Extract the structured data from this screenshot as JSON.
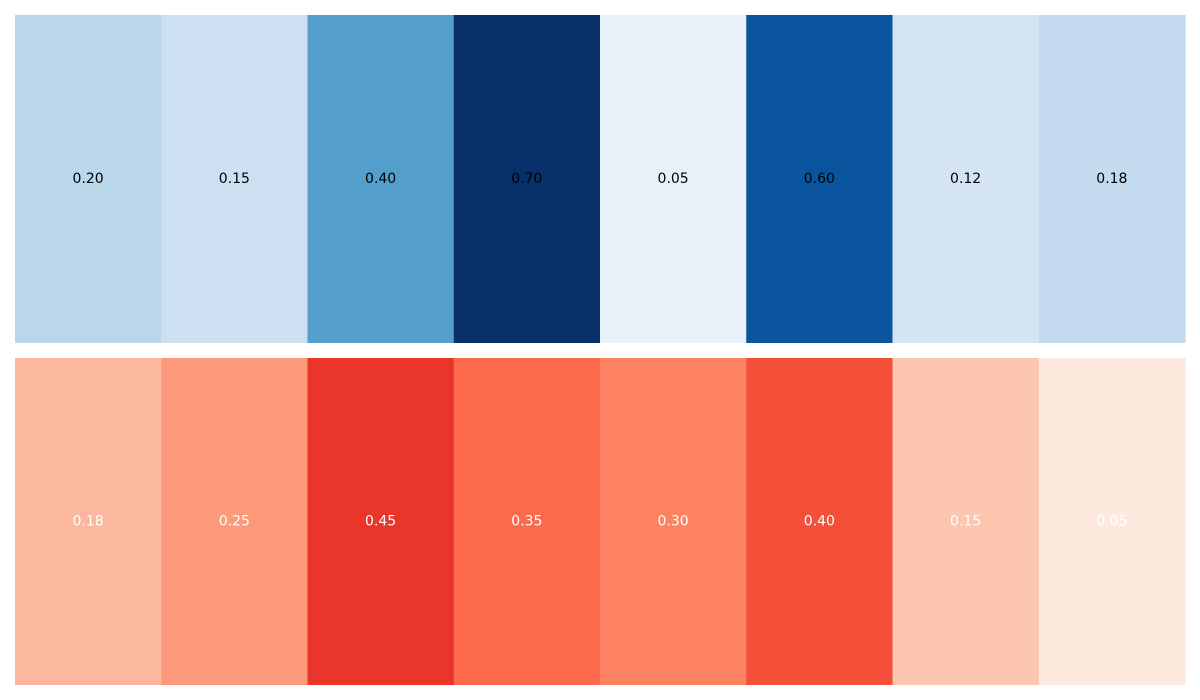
{
  "chart_data": [
    {
      "type": "heatmap",
      "colormap": "Blues",
      "rows": 1,
      "columns": 8,
      "values": [
        0.2,
        0.15,
        0.4,
        0.7,
        0.05,
        0.6,
        0.12,
        0.18
      ],
      "labels": [
        "0.20",
        "0.15",
        "0.40",
        "0.70",
        "0.05",
        "0.60",
        "0.12",
        "0.18"
      ],
      "colors": [
        "#bad6eb",
        "#cde0f1",
        "#559fcd",
        "#08306b",
        "#e8f1fa",
        "#0b559f",
        "#d4e4f4",
        "#c4daee"
      ],
      "label_color": "#000000",
      "grid": false,
      "axes_visible": false
    },
    {
      "type": "heatmap",
      "colormap": "Reds",
      "rows": 1,
      "columns": 8,
      "values": [
        0.18,
        0.25,
        0.45,
        0.35,
        0.3,
        0.4,
        0.15,
        0.05
      ],
      "labels": [
        "0.18",
        "0.25",
        "0.45",
        "0.35",
        "0.30",
        "0.40",
        "0.15",
        "0.05"
      ],
      "colors": [
        "#fcb89e",
        "#fc997a",
        "#ea362a",
        "#fc6a4b",
        "#fc8262",
        "#f44f39",
        "#fdc6af",
        "#fee9df"
      ],
      "label_color": "#ffffff",
      "grid": false,
      "axes_visible": false
    }
  ]
}
